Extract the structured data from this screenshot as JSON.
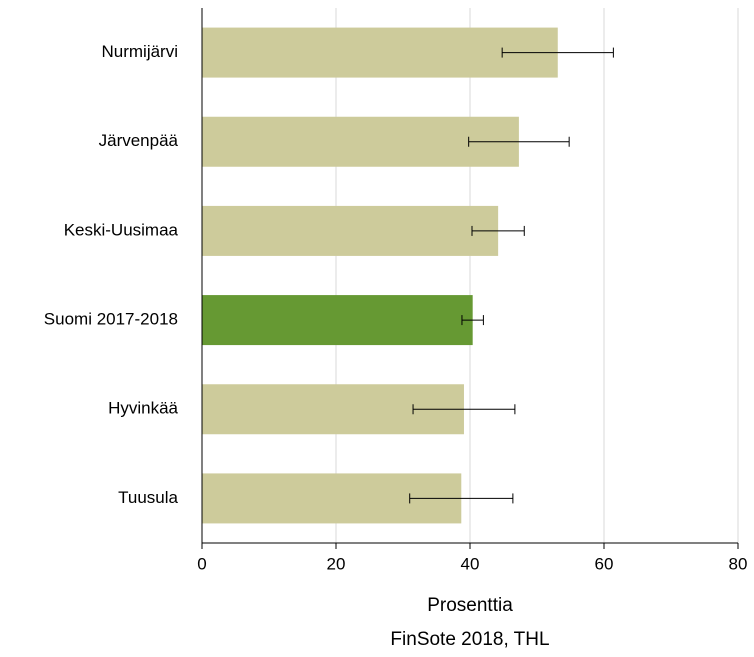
{
  "chart_data": {
    "type": "bar",
    "orientation": "horizontal",
    "categories": [
      "Nurmijärvi",
      "Järvenpää",
      "Keski-Uusimaa",
      "Suomi 2017-2018",
      "Hyvinkää",
      "Tuusula"
    ],
    "values": [
      53.1,
      47.3,
      44.2,
      40.4,
      39.1,
      38.7
    ],
    "errors": [
      8.3,
      7.5,
      3.9,
      1.6,
      7.6,
      7.7
    ],
    "colors": [
      "#cdcb9b",
      "#cdcb9b",
      "#cdcb9b",
      "#669933",
      "#cdcb9b",
      "#cdcb9b"
    ],
    "xlim": [
      0,
      80
    ],
    "xticks": [
      0,
      20,
      40,
      60,
      80
    ],
    "grid": true,
    "xlabel": "Prosenttia",
    "source": "FinSote 2018, THL"
  }
}
